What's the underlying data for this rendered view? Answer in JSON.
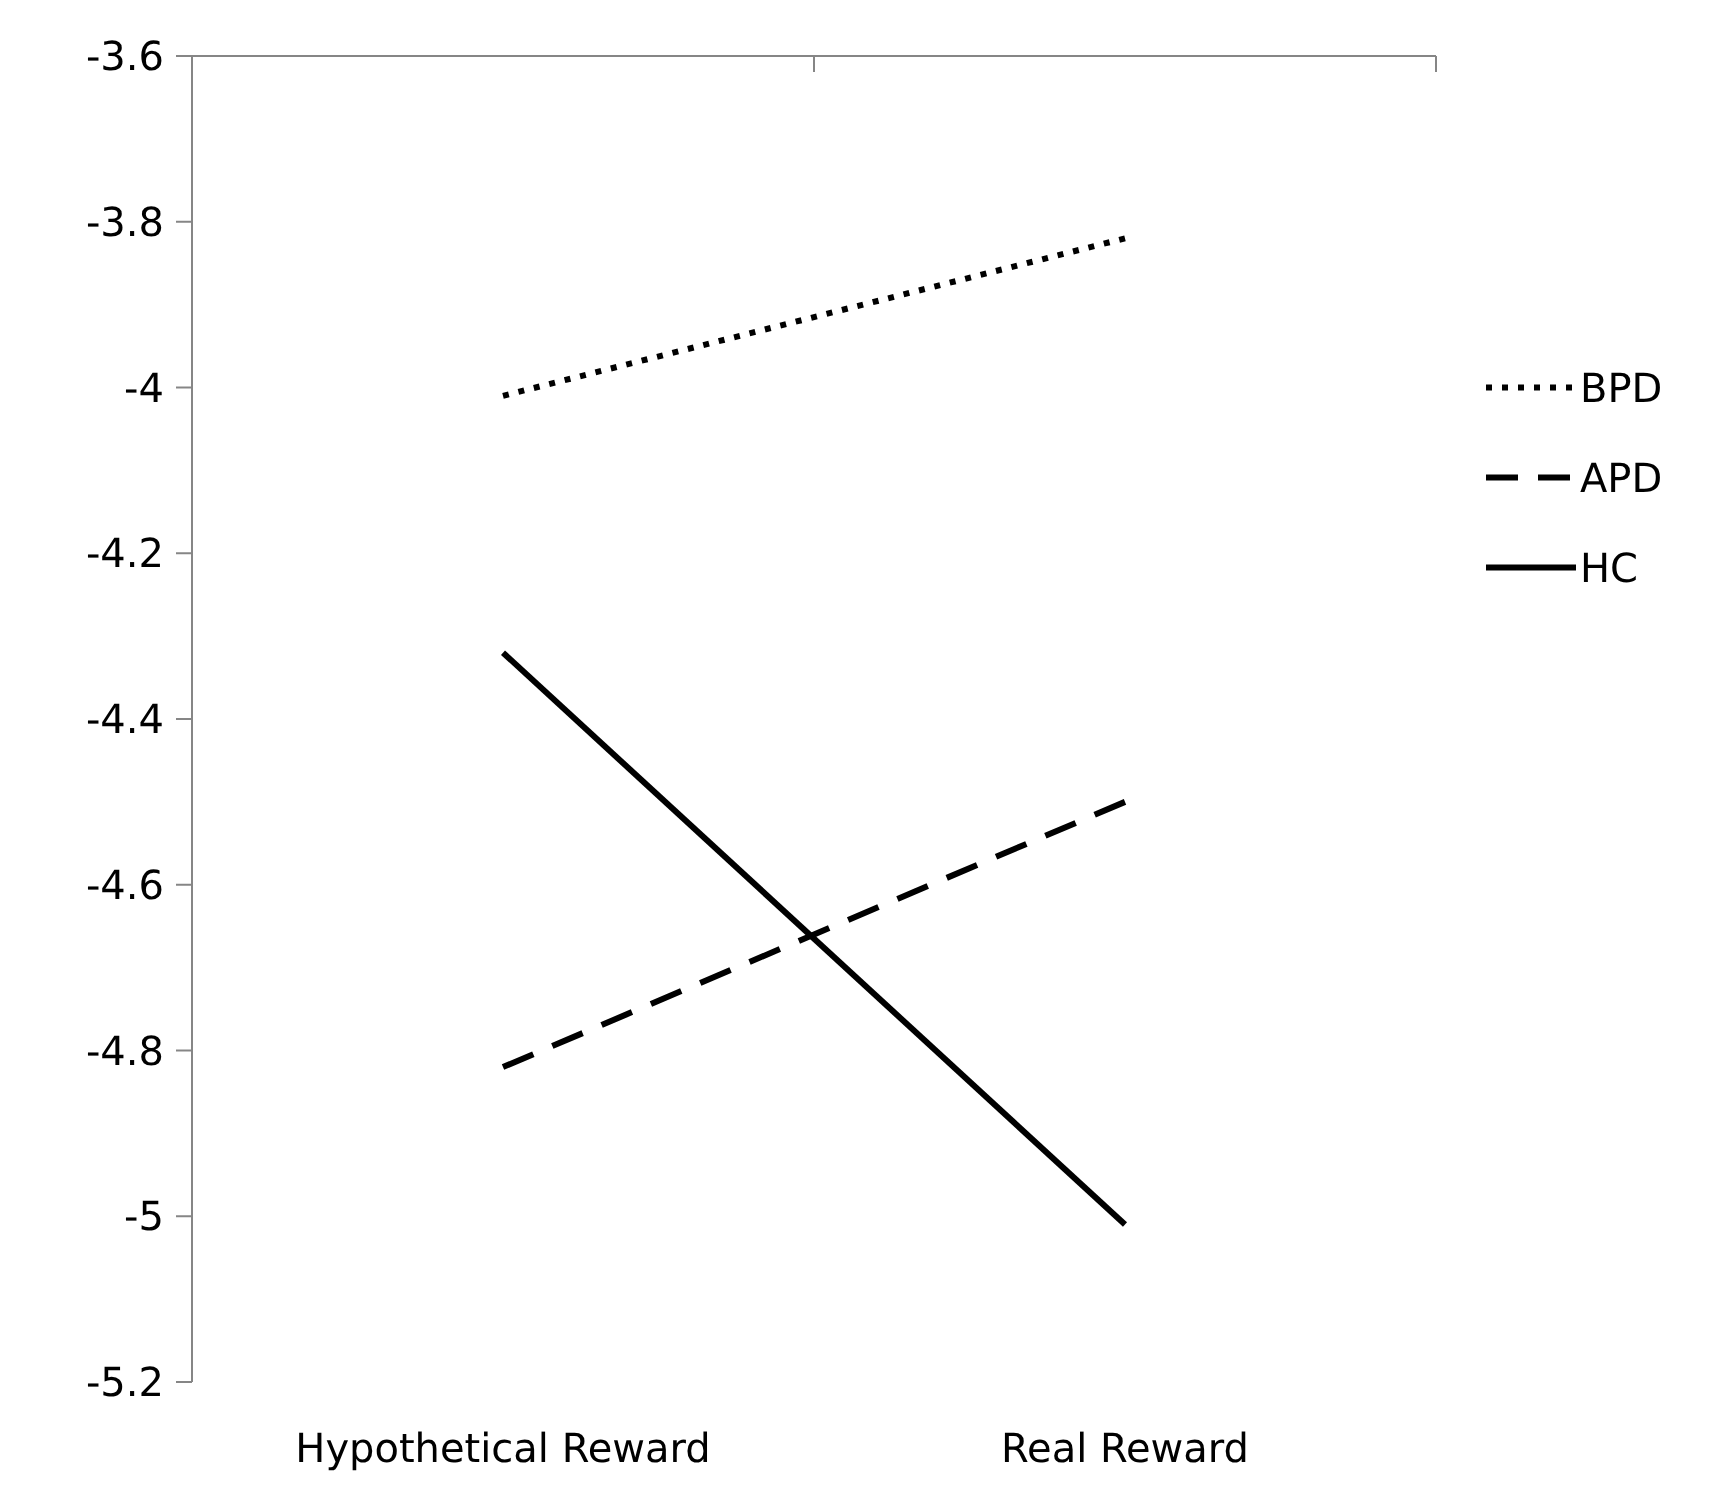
{
  "chart_data": {
    "type": "line",
    "categories": [
      "Hypothetical Reward",
      "Real Reward"
    ],
    "series": [
      {
        "name": "BPD",
        "color": "#000000",
        "line_style": "dotted",
        "values": [
          -4.01,
          -3.82
        ]
      },
      {
        "name": "APD",
        "color": "#000000",
        "line_style": "dashed",
        "values": [
          -4.82,
          -4.5
        ]
      },
      {
        "name": "HC",
        "color": "#000000",
        "line_style": "solid",
        "values": [
          -4.32,
          -5.01
        ]
      }
    ],
    "ylim": [
      -5.2,
      -3.6
    ],
    "yticks": [
      -5.2,
      -5,
      -4.8,
      -4.6,
      -4.4,
      -4.2,
      -4,
      -3.8,
      -3.6
    ],
    "grid": false,
    "legend": "right",
    "marker": "none"
  }
}
